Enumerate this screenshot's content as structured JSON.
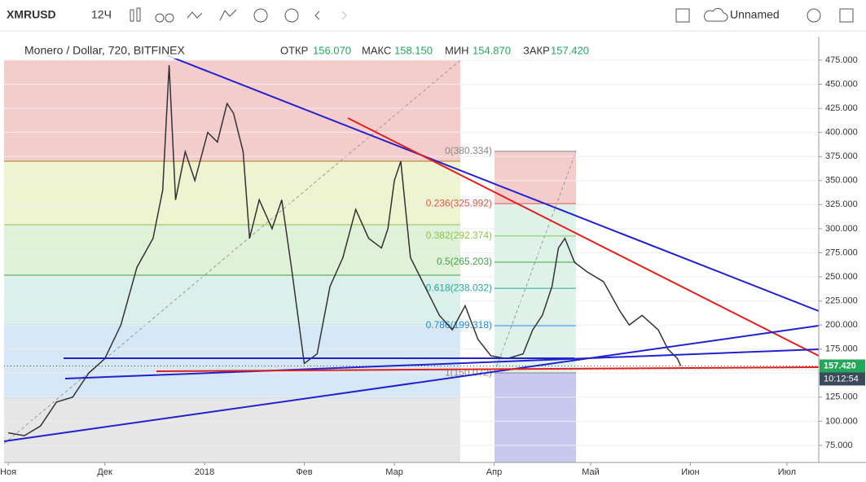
{
  "toolbar": {
    "symbol": "XMRUSD",
    "interval": "12Ч",
    "layout_name": "Unnamed"
  },
  "legend": {
    "title": "Monero / Dollar, 720, BITFINEX",
    "open_label": "ОТКР",
    "open": "156.070",
    "high_label": "МАКС",
    "high": "158.150",
    "low_label": "МИН",
    "low": "154.870",
    "close_label": "ЗАКР",
    "close": "157.420"
  },
  "chart_data": {
    "type": "line",
    "color": "#333333",
    "x": [
      0,
      5,
      10,
      15,
      20,
      25,
      30,
      35,
      40,
      45,
      48,
      50,
      52,
      55,
      58,
      62,
      65,
      68,
      70,
      73,
      75,
      78,
      82,
      85,
      88,
      92,
      96,
      100,
      104,
      108,
      112,
      116,
      118,
      120,
      122,
      125,
      128,
      131,
      134,
      138,
      142,
      146,
      150,
      155,
      160,
      163,
      166,
      169,
      171,
      173,
      176,
      180,
      185,
      190,
      193,
      197,
      202,
      205,
      208,
      209
    ],
    "values": [
      88,
      85,
      95,
      120,
      125,
      150,
      165,
      200,
      260,
      290,
      340,
      470,
      330,
      380,
      350,
      400,
      390,
      430,
      420,
      380,
      290,
      330,
      300,
      330,
      260,
      160,
      170,
      240,
      270,
      320,
      290,
      280,
      300,
      350,
      370,
      270,
      250,
      230,
      210,
      195,
      220,
      185,
      168,
      165,
      170,
      195,
      210,
      240,
      280,
      290,
      265,
      255,
      245,
      215,
      200,
      210,
      195,
      175,
      165,
      157.42
    ],
    "xlim": [
      -1.3,
      251.9
    ],
    "ylim": [
      57.2,
      499.5
    ],
    "xticks": [
      {
        "value": 0,
        "label": "Ноя"
      },
      {
        "value": 30,
        "label": "Дек"
      },
      {
        "value": 61,
        "label": "2018"
      },
      {
        "value": 92,
        "label": "Фев"
      },
      {
        "value": 120,
        "label": "Мар"
      },
      {
        "value": 151,
        "label": "Апр"
      },
      {
        "value": 181,
        "label": "Май"
      },
      {
        "value": 212,
        "label": "Июн"
      },
      {
        "value": 242,
        "label": "Июл"
      }
    ],
    "yticks": [
      {
        "value": 75,
        "label": "75.000"
      },
      {
        "value": 100,
        "label": "100.000"
      },
      {
        "value": 125,
        "label": "125.000"
      },
      {
        "value": 150,
        "label": "150.000"
      },
      {
        "value": 175,
        "label": "175.000"
      },
      {
        "value": 200,
        "label": "200.000"
      },
      {
        "value": 225,
        "label": "225.000"
      },
      {
        "value": 250,
        "label": "250.000"
      },
      {
        "value": 275,
        "label": "275.000"
      },
      {
        "value": 300,
        "label": "300.000"
      },
      {
        "value": 325,
        "label": "325.000"
      },
      {
        "value": 350,
        "label": "350.000"
      },
      {
        "value": 375,
        "label": "375.000"
      },
      {
        "value": 400,
        "label": "400.000"
      },
      {
        "value": 425,
        "label": "425.000"
      },
      {
        "value": 450,
        "label": "450.000"
      },
      {
        "value": 475,
        "label": "475.000"
      }
    ],
    "last_price": {
      "value": 157.42,
      "label": "157.420"
    },
    "countdown": "10:12:54",
    "fib_levels": [
      {
        "value": 380.334,
        "label": "0(380.334)",
        "color": "#888888"
      },
      {
        "value": 325.992,
        "label": "0.236(325.992)",
        "color": "#e0584a"
      },
      {
        "value": 292.374,
        "label": "0.382(292.374)",
        "color": "#8bc34a"
      },
      {
        "value": 265.203,
        "label": "0.5(265.203)",
        "color": "#43a047"
      },
      {
        "value": 238.032,
        "label": "0.618(238.032)",
        "color": "#26a69a"
      },
      {
        "value": 199.318,
        "label": "0.786(199.318)",
        "color": "#1e88e5"
      },
      {
        "value": 150.072,
        "label": "1(150.072)",
        "color": "#888888"
      }
    ]
  }
}
